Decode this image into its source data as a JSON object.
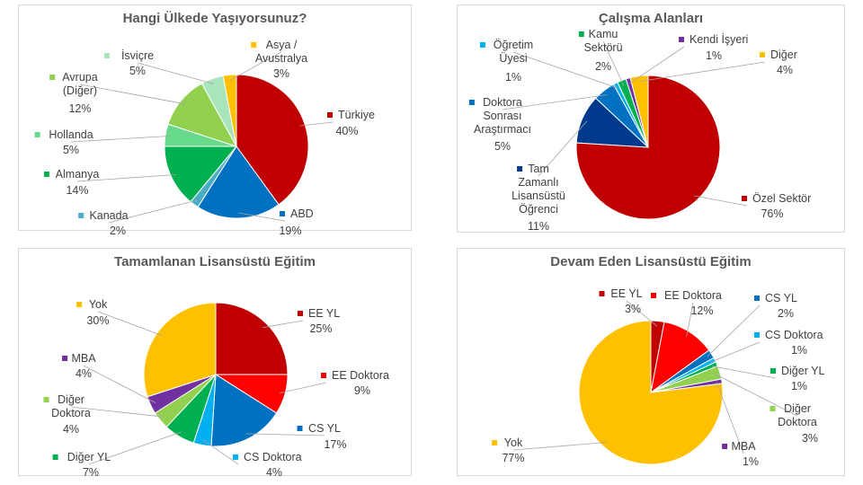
{
  "chart_data": [
    {
      "type": "pie",
      "title": "Hangi Ülkede Yaşıyorsunuz?",
      "slices": [
        {
          "label": "Türkiye",
          "value": 40,
          "pct": "40%",
          "color": "#C00000"
        },
        {
          "label": "ABD",
          "value": 19,
          "pct": "19%",
          "color": "#0070C0"
        },
        {
          "label": "Kanada",
          "value": 2,
          "pct": "2%",
          "color": "#4BACC6"
        },
        {
          "label": "Almanya",
          "value": 14,
          "pct": "14%",
          "color": "#00B050"
        },
        {
          "label": "Hollanda",
          "value": 5,
          "pct": "5%",
          "color": "#66D98A"
        },
        {
          "label": "Avrupa (Diğer)",
          "value": 12,
          "pct": "12%",
          "color": "#92D050"
        },
        {
          "label": "İsviçre",
          "value": 5,
          "pct": "5%",
          "color": "#A9E5BB"
        },
        {
          "label": "Asya / Avustralya",
          "value": 3,
          "pct": "3%",
          "color": "#FFC000"
        }
      ]
    },
    {
      "type": "pie",
      "title": "Çalışma Alanları",
      "slices": [
        {
          "label": "Özel Sektör",
          "value": 76,
          "pct": "76%",
          "color": "#C00000"
        },
        {
          "label": "Tam Zamanlı Lisansüstü Öğrenci",
          "value": 11,
          "pct": "11%",
          "color": "#003A8C"
        },
        {
          "label": "Doktora Sonrası Araştırmacı",
          "value": 5,
          "pct": "5%",
          "color": "#0070C0"
        },
        {
          "label": "Öğretim Üyesi",
          "value": 1,
          "pct": "1%",
          "color": "#00B0F0"
        },
        {
          "label": "Kamu Sektörü",
          "value": 2,
          "pct": "2%",
          "color": "#00B050"
        },
        {
          "label": "Kendi İşyeri",
          "value": 1,
          "pct": "1%",
          "color": "#7030A0"
        },
        {
          "label": "Diğer",
          "value": 4,
          "pct": "4%",
          "color": "#FFC000"
        }
      ]
    },
    {
      "type": "pie",
      "title": "Tamamlanan Lisansüstü Eğitim",
      "slices": [
        {
          "label": "EE YL",
          "value": 25,
          "pct": "25%",
          "color": "#C00000"
        },
        {
          "label": "EE Doktora",
          "value": 9,
          "pct": "9%",
          "color": "#FF0000"
        },
        {
          "label": "CS YL",
          "value": 17,
          "pct": "17%",
          "color": "#0070C0"
        },
        {
          "label": "CS Doktora",
          "value": 4,
          "pct": "4%",
          "color": "#00B0F0"
        },
        {
          "label": "Diğer YL",
          "value": 7,
          "pct": "7%",
          "color": "#00B050"
        },
        {
          "label": "Diğer Doktora",
          "value": 4,
          "pct": "4%",
          "color": "#92D050"
        },
        {
          "label": "MBA",
          "value": 4,
          "pct": "4%",
          "color": "#7030A0"
        },
        {
          "label": "Yok",
          "value": 30,
          "pct": "30%",
          "color": "#FFC000"
        }
      ]
    },
    {
      "type": "pie",
      "title": "Devam Eden Lisansüstü Eğitim",
      "slices": [
        {
          "label": "EE YL",
          "value": 3,
          "pct": "3%",
          "color": "#C00000"
        },
        {
          "label": "EE Doktora",
          "value": 12,
          "pct": "12%",
          "color": "#FF0000"
        },
        {
          "label": "CS YL",
          "value": 2,
          "pct": "2%",
          "color": "#0070C0"
        },
        {
          "label": "CS Doktora",
          "value": 1,
          "pct": "1%",
          "color": "#00B0F0"
        },
        {
          "label": "Diğer YL",
          "value": 1,
          "pct": "1%",
          "color": "#00B050"
        },
        {
          "label": "Diğer Doktora",
          "value": 3,
          "pct": "3%",
          "color": "#92D050"
        },
        {
          "label": "MBA",
          "value": 1,
          "pct": "1%",
          "color": "#7030A0"
        },
        {
          "label": "Yok",
          "value": 77,
          "pct": "77%",
          "color": "#FFC000"
        }
      ]
    }
  ]
}
